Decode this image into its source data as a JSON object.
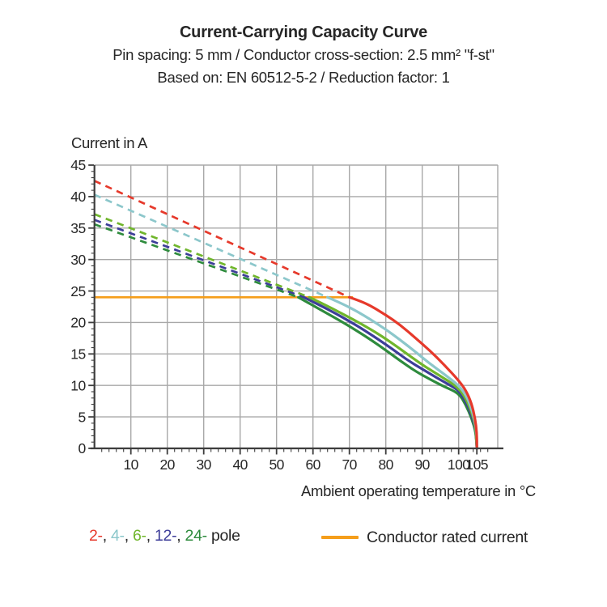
{
  "header": {
    "title": "Current-Carrying Capacity Curve",
    "subtitle_spec": "Pin spacing: 5 mm / Conductor cross-section: 2.5 mm² \"f-st\"",
    "subtitle_standard": "Based on: EN 60512-5-2 / Reduction factor: 1"
  },
  "chart_data": {
    "type": "line",
    "title": "Current-Carrying Capacity Curve",
    "xlabel": "Ambient operating temperature in °C",
    "ylabel": "Current in A",
    "xlim": [
      0,
      110.8
    ],
    "ylim": [
      0,
      45
    ],
    "x_ticks": [
      10,
      20,
      30,
      40,
      50,
      60,
      70,
      80,
      90,
      100,
      105
    ],
    "y_ticks": [
      0,
      5,
      10,
      15,
      20,
      25,
      30,
      35,
      40,
      45
    ],
    "x_minor_step": 2,
    "y_minor_step": 1,
    "grid": true,
    "rated_current_A": 24,
    "rated_line": {
      "y": 24,
      "x_start": 0,
      "x_end": 71
    },
    "series": [
      {
        "name": "2-pole",
        "poles": 2,
        "label": "2-",
        "color": "#e6392b",
        "dashed": [
          [
            0,
            42.5
          ],
          [
            70,
            24
          ]
        ],
        "solid": [
          [
            70,
            24
          ],
          [
            73,
            23.4
          ],
          [
            76,
            22.6
          ],
          [
            80,
            21.2
          ],
          [
            84,
            19.6
          ],
          [
            88,
            17.6
          ],
          [
            92,
            15.6
          ],
          [
            96,
            13.3
          ],
          [
            100,
            10.8
          ],
          [
            102,
            9.2
          ],
          [
            103.5,
            7.2
          ],
          [
            104.5,
            4.8
          ],
          [
            105,
            2.4
          ],
          [
            105,
            0
          ]
        ]
      },
      {
        "name": "4-pole",
        "poles": 4,
        "label": "4-",
        "color": "#8cc7cb",
        "dashed": [
          [
            0,
            40.3
          ],
          [
            64,
            24
          ]
        ],
        "solid": [
          [
            64,
            24
          ],
          [
            68,
            23
          ],
          [
            72,
            21.8
          ],
          [
            76,
            20.4
          ],
          [
            80,
            18.9
          ],
          [
            84,
            17.2
          ],
          [
            88,
            15.4
          ],
          [
            92,
            13.5
          ],
          [
            96,
            11.8
          ],
          [
            100,
            10
          ],
          [
            102,
            8.5
          ],
          [
            103.5,
            6.4
          ],
          [
            104.6,
            4
          ],
          [
            105,
            2
          ],
          [
            105,
            0
          ]
        ]
      },
      {
        "name": "6-pole",
        "poles": 6,
        "label": "6-",
        "color": "#70b62c",
        "dashed": [
          [
            0,
            37.2
          ],
          [
            59,
            24
          ]
        ],
        "solid": [
          [
            59,
            24
          ],
          [
            63,
            22.9
          ],
          [
            67,
            21.7
          ],
          [
            71,
            20.5
          ],
          [
            75,
            19.2
          ],
          [
            79,
            17.8
          ],
          [
            83,
            16.2
          ],
          [
            87,
            14.5
          ],
          [
            91,
            12.9
          ],
          [
            95,
            11.5
          ],
          [
            100,
            9.6
          ],
          [
            102,
            7.9
          ],
          [
            103.6,
            5.7
          ],
          [
            104.7,
            3.4
          ],
          [
            105,
            0
          ]
        ]
      },
      {
        "name": "12-pole",
        "poles": 12,
        "label": "12-",
        "color": "#3d3d99",
        "dashed": [
          [
            0,
            36.3
          ],
          [
            57.5,
            24
          ]
        ],
        "solid": [
          [
            57.5,
            24
          ],
          [
            62,
            22.7
          ],
          [
            66,
            21.5
          ],
          [
            70,
            20.2
          ],
          [
            74,
            18.8
          ],
          [
            78,
            17.3
          ],
          [
            82,
            15.7
          ],
          [
            86,
            14
          ],
          [
            90,
            12.6
          ],
          [
            94,
            11.2
          ],
          [
            98,
            9.9
          ],
          [
            100,
            9.2
          ],
          [
            102,
            7.4
          ],
          [
            103.6,
            5.2
          ],
          [
            104.7,
            3
          ],
          [
            105,
            0
          ]
        ]
      },
      {
        "name": "24-pole",
        "poles": 24,
        "label": "24-",
        "color": "#2e8b3d",
        "dashed": [
          [
            0,
            35.6
          ],
          [
            56,
            24
          ]
        ],
        "solid": [
          [
            56,
            24
          ],
          [
            60,
            22.7
          ],
          [
            64,
            21.4
          ],
          [
            68,
            20.1
          ],
          [
            72,
            18.7
          ],
          [
            76,
            17.2
          ],
          [
            80,
            15.6
          ],
          [
            84,
            13.9
          ],
          [
            88,
            12.3
          ],
          [
            92,
            11
          ],
          [
            96,
            9.8
          ],
          [
            100,
            8.8
          ],
          [
            102,
            6.9
          ],
          [
            103.6,
            4.7
          ],
          [
            104.7,
            2.6
          ],
          [
            105,
            0
          ]
        ]
      }
    ],
    "legend_position": "bottom"
  },
  "legend": {
    "pole_items": [
      {
        "label": "2-",
        "color": "#e6392b"
      },
      {
        "label": "4-",
        "color": "#8cc7cb"
      },
      {
        "label": "6-",
        "color": "#70b62c"
      },
      {
        "label": "12-",
        "color": "#3d3d99"
      },
      {
        "label": "24-",
        "color": "#2e8b3d"
      }
    ],
    "separator": ", ",
    "suffix": " pole",
    "rated_label": "Conductor rated current",
    "rated_color": "#f59e1b"
  },
  "style_colors": {
    "grid": "#a8a8a8",
    "axis": "#3d3d3d",
    "text": "#262626",
    "background": "#ffffff"
  }
}
